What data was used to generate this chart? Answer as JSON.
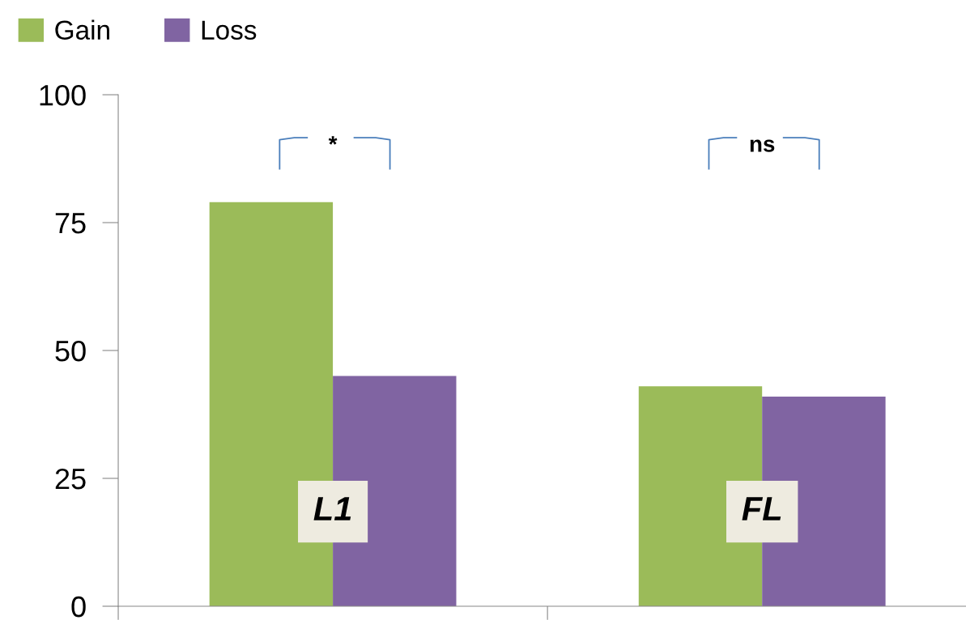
{
  "chart_data": {
    "type": "bar",
    "categories": [
      "L1",
      "FL"
    ],
    "series": [
      {
        "name": "Gain",
        "color": "#9bbb59",
        "values": [
          79,
          43
        ]
      },
      {
        "name": "Loss",
        "color": "#8064a2",
        "values": [
          45,
          41
        ]
      }
    ],
    "ylim": [
      0,
      100
    ],
    "yticks": [
      0,
      25,
      50,
      75,
      100
    ],
    "grid": false,
    "legend": "top left",
    "annotations": [
      "*",
      "ns"
    ]
  }
}
